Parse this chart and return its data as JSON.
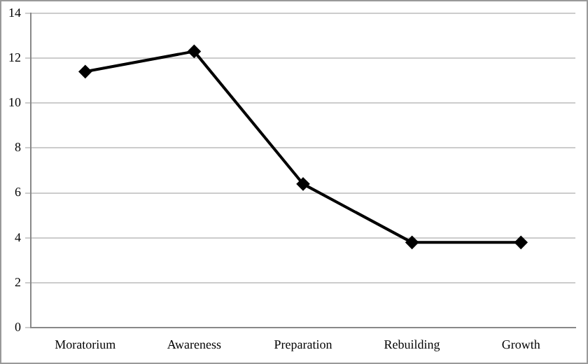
{
  "chart_data": {
    "type": "line",
    "categories": [
      "Moratorium",
      "Awareness",
      "Preparation",
      "Rebuilding",
      "Growth"
    ],
    "series": [
      {
        "color": "#000000",
        "values": [
          11.4,
          12.3,
          6.4,
          3.8,
          3.8
        ]
      }
    ],
    "ylim": [
      0,
      14
    ],
    "yticks": [
      0,
      2,
      4,
      6,
      8,
      10,
      12,
      14
    ],
    "grid": "y",
    "marker": "diamond",
    "line_style": "solid"
  }
}
